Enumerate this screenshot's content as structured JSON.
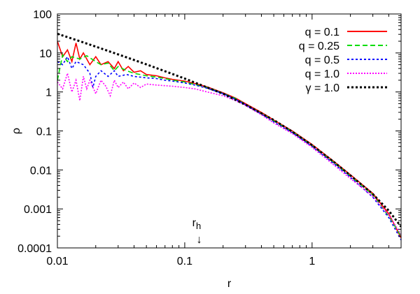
{
  "chart_data": {
    "type": "line",
    "title": "",
    "xlabel": "r",
    "ylabel": "ρ",
    "xscale": "log",
    "yscale": "log",
    "xlim": [
      0.01,
      5
    ],
    "ylim": [
      0.0001,
      100
    ],
    "grid": false,
    "legend_position": "top-right",
    "x_ticks": [
      {
        "value": 0.01,
        "label": "0.01"
      },
      {
        "value": 0.1,
        "label": "0.1"
      },
      {
        "value": 1,
        "label": "1"
      }
    ],
    "y_ticks": [
      {
        "value": 0.0001,
        "label": "0.0001"
      },
      {
        "value": 0.001,
        "label": "0.001"
      },
      {
        "value": 0.01,
        "label": "0.01"
      },
      {
        "value": 0.1,
        "label": "0.1"
      },
      {
        "value": 1,
        "label": "1"
      },
      {
        "value": 10,
        "label": "10"
      },
      {
        "value": 100,
        "label": "100"
      }
    ],
    "annotation": {
      "label": "r",
      "subscript": "h",
      "arrow": "↓",
      "x": 0.13
    },
    "series": [
      {
        "name": "q = 0.1",
        "color": "#ff0000",
        "dash": "solid",
        "points": [
          [
            0.01,
            20
          ],
          [
            0.011,
            8
          ],
          [
            0.012,
            12
          ],
          [
            0.013,
            6
          ],
          [
            0.014,
            18
          ],
          [
            0.015,
            7
          ],
          [
            0.016,
            10
          ],
          [
            0.018,
            5
          ],
          [
            0.02,
            8
          ],
          [
            0.022,
            5
          ],
          [
            0.025,
            6
          ],
          [
            0.028,
            4
          ],
          [
            0.03,
            6
          ],
          [
            0.033,
            3.5
          ],
          [
            0.036,
            4.5
          ],
          [
            0.04,
            3.2
          ],
          [
            0.045,
            3.5
          ],
          [
            0.05,
            2.8
          ],
          [
            0.06,
            2.6
          ],
          [
            0.07,
            2.3
          ],
          [
            0.08,
            2.1
          ],
          [
            0.1,
            1.9
          ],
          [
            0.12,
            1.65
          ],
          [
            0.15,
            1.35
          ],
          [
            0.2,
            0.95
          ],
          [
            0.25,
            0.7
          ],
          [
            0.3,
            0.5
          ],
          [
            0.4,
            0.3
          ],
          [
            0.5,
            0.19
          ],
          [
            0.7,
            0.1
          ],
          [
            1,
            0.045
          ],
          [
            1.5,
            0.016
          ],
          [
            2,
            0.0075
          ],
          [
            3,
            0.0025
          ],
          [
            4,
            0.00075
          ],
          [
            5,
            0.00018
          ]
        ]
      },
      {
        "name": "q = 0.25",
        "color": "#00dd00",
        "dash": "7,4",
        "points": [
          [
            0.01,
            2
          ],
          [
            0.011,
            9
          ],
          [
            0.012,
            6
          ],
          [
            0.013,
            8
          ],
          [
            0.015,
            7
          ],
          [
            0.017,
            8.5
          ],
          [
            0.02,
            6
          ],
          [
            0.022,
            5
          ],
          [
            0.025,
            5.5
          ],
          [
            0.028,
            3.5
          ],
          [
            0.03,
            4.5
          ],
          [
            0.035,
            3.5
          ],
          [
            0.04,
            3
          ],
          [
            0.05,
            2.6
          ],
          [
            0.06,
            2.4
          ],
          [
            0.07,
            2.2
          ],
          [
            0.08,
            2
          ],
          [
            0.1,
            1.8
          ],
          [
            0.12,
            1.55
          ],
          [
            0.15,
            1.3
          ],
          [
            0.2,
            0.92
          ],
          [
            0.25,
            0.68
          ],
          [
            0.3,
            0.48
          ],
          [
            0.4,
            0.28
          ],
          [
            0.5,
            0.18
          ],
          [
            0.7,
            0.095
          ],
          [
            1,
            0.042
          ],
          [
            1.5,
            0.015
          ],
          [
            2,
            0.007
          ],
          [
            3,
            0.0023
          ],
          [
            4,
            0.00065
          ],
          [
            5,
            0.0002
          ]
        ]
      },
      {
        "name": "q = 0.5",
        "color": "#0000ff",
        "dash": "3,3",
        "points": [
          [
            0.01,
            6
          ],
          [
            0.011,
            5
          ],
          [
            0.012,
            8
          ],
          [
            0.013,
            4
          ],
          [
            0.014,
            6
          ],
          [
            0.016,
            5
          ],
          [
            0.018,
            3
          ],
          [
            0.019,
            1.3
          ],
          [
            0.02,
            2.5
          ],
          [
            0.022,
            3.5
          ],
          [
            0.025,
            2.5
          ],
          [
            0.028,
            3.5
          ],
          [
            0.03,
            2.5
          ],
          [
            0.035,
            2.8
          ],
          [
            0.04,
            2.5
          ],
          [
            0.05,
            2.3
          ],
          [
            0.06,
            2.2
          ],
          [
            0.07,
            2
          ],
          [
            0.08,
            1.9
          ],
          [
            0.1,
            1.7
          ],
          [
            0.12,
            1.5
          ],
          [
            0.15,
            1.25
          ],
          [
            0.2,
            0.9
          ],
          [
            0.25,
            0.65
          ],
          [
            0.3,
            0.47
          ],
          [
            0.4,
            0.27
          ],
          [
            0.5,
            0.17
          ],
          [
            0.7,
            0.09
          ],
          [
            1,
            0.04
          ],
          [
            1.5,
            0.014
          ],
          [
            2,
            0.0065
          ],
          [
            3,
            0.002
          ],
          [
            4,
            0.0006
          ],
          [
            5,
            0.00016
          ]
        ]
      },
      {
        "name": "q = 1.0",
        "color": "#ff00ff",
        "dash": "2,2",
        "points": [
          [
            0.01,
            1.8
          ],
          [
            0.011,
            1.2
          ],
          [
            0.012,
            3
          ],
          [
            0.013,
            1
          ],
          [
            0.014,
            2
          ],
          [
            0.015,
            0.6
          ],
          [
            0.016,
            2.5
          ],
          [
            0.017,
            1.2
          ],
          [
            0.018,
            2
          ],
          [
            0.02,
            0.9
          ],
          [
            0.022,
            2
          ],
          [
            0.024,
            1.4
          ],
          [
            0.026,
            0.8
          ],
          [
            0.028,
            2
          ],
          [
            0.03,
            1.3
          ],
          [
            0.033,
            1.8
          ],
          [
            0.036,
            1.2
          ],
          [
            0.04,
            1.7
          ],
          [
            0.045,
            1.3
          ],
          [
            0.05,
            1.6
          ],
          [
            0.06,
            1.5
          ],
          [
            0.07,
            1.45
          ],
          [
            0.08,
            1.4
          ],
          [
            0.1,
            1.3
          ],
          [
            0.12,
            1.2
          ],
          [
            0.15,
            1
          ],
          [
            0.2,
            0.8
          ],
          [
            0.25,
            0.6
          ],
          [
            0.3,
            0.45
          ],
          [
            0.4,
            0.26
          ],
          [
            0.5,
            0.16
          ],
          [
            0.7,
            0.085
          ],
          [
            1,
            0.038
          ],
          [
            1.5,
            0.013
          ],
          [
            2,
            0.006
          ],
          [
            3,
            0.0021
          ],
          [
            4,
            0.0007
          ],
          [
            5,
            0.00022
          ]
        ]
      },
      {
        "name": "γ = 1.0",
        "color": "#000000",
        "dash": "3,3",
        "points": [
          [
            0.01,
            31
          ],
          [
            0.015,
            20
          ],
          [
            0.02,
            14.5
          ],
          [
            0.03,
            9.2
          ],
          [
            0.05,
            5.1
          ],
          [
            0.07,
            3.4
          ],
          [
            0.1,
            2.2
          ],
          [
            0.15,
            1.3
          ],
          [
            0.2,
            0.9
          ],
          [
            0.3,
            0.47
          ],
          [
            0.5,
            0.19
          ],
          [
            0.7,
            0.095
          ],
          [
            1,
            0.043
          ],
          [
            1.5,
            0.0155
          ],
          [
            2,
            0.0072
          ],
          [
            3,
            0.0024
          ],
          [
            4,
            0.0009
          ],
          [
            5,
            0.00035
          ]
        ]
      }
    ]
  }
}
